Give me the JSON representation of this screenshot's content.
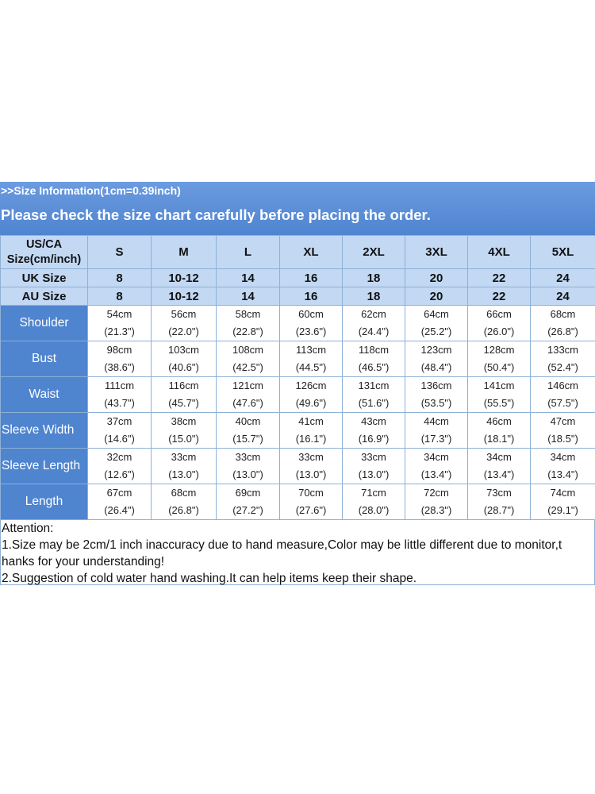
{
  "banner": {
    "info": ">>Size Information(1cm=0.39inch)",
    "warning": "Please check the size chart carefully before placing the order."
  },
  "sizes": [
    "S",
    "M",
    "L",
    "XL",
    "2XL",
    "3XL",
    "4XL",
    "5XL"
  ],
  "header_rows": [
    {
      "label_line1": "US/CA",
      "label_line2": "Size(cm/inch)"
    },
    {
      "label": "UK Size",
      "values": [
        "8",
        "10-12",
        "14",
        "16",
        "18",
        "20",
        "22",
        "24"
      ]
    },
    {
      "label": "AU Size",
      "values": [
        "8",
        "10-12",
        "14",
        "16",
        "18",
        "20",
        "22",
        "24"
      ]
    }
  ],
  "measurements": [
    {
      "label": "Shoulder",
      "cm": [
        "54cm",
        "56cm",
        "58cm",
        "60cm",
        "62cm",
        "64cm",
        "66cm",
        "68cm"
      ],
      "inch": [
        "(21.3\")",
        "(22.0\")",
        "(22.8\")",
        "(23.6\")",
        "(24.4\")",
        "(25.2\")",
        "(26.0\")",
        "(26.8\")"
      ]
    },
    {
      "label": "Bust",
      "cm": [
        "98cm",
        "103cm",
        "108cm",
        "113cm",
        "118cm",
        "123cm",
        "128cm",
        "133cm"
      ],
      "inch": [
        "(38.6\")",
        "(40.6\")",
        "(42.5\")",
        "(44.5\")",
        "(46.5\")",
        "(48.4\")",
        "(50.4\")",
        "(52.4\")"
      ]
    },
    {
      "label": "Waist",
      "cm": [
        "111cm",
        "116cm",
        "121cm",
        "126cm",
        "131cm",
        "136cm",
        "141cm",
        "146cm"
      ],
      "inch": [
        "(43.7\")",
        "(45.7\")",
        "(47.6\")",
        "(49.6\")",
        "(51.6\")",
        "(53.5\")",
        "(55.5\")",
        "(57.5\")"
      ]
    },
    {
      "label": "Sleeve Width",
      "cm": [
        "37cm",
        "38cm",
        "40cm",
        "41cm",
        "43cm",
        "44cm",
        "46cm",
        "47cm"
      ],
      "inch": [
        "(14.6\")",
        "(15.0\")",
        "(15.7\")",
        "(16.1\")",
        "(16.9\")",
        "(17.3\")",
        "(18.1\")",
        "(18.5\")"
      ]
    },
    {
      "label": "Sleeve Length",
      "cm": [
        "32cm",
        "33cm",
        "33cm",
        "33cm",
        "33cm",
        "34cm",
        "34cm",
        "34cm"
      ],
      "inch": [
        "(12.6\")",
        "(13.0\")",
        "(13.0\")",
        "(13.0\")",
        "(13.0\")",
        "(13.4\")",
        "(13.4\")",
        "(13.4\")"
      ]
    },
    {
      "label": "Length",
      "cm": [
        "67cm",
        "68cm",
        "69cm",
        "70cm",
        "71cm",
        "72cm",
        "73cm",
        "74cm"
      ],
      "inch": [
        "(26.4\")",
        "(26.8\")",
        "(27.2\")",
        "(27.6\")",
        "(28.0\")",
        "(28.3\")",
        "(28.7\")",
        "(29.1\")"
      ]
    }
  ],
  "notes": {
    "heading": "Attention:",
    "line1": "1.Size may be 2cm/1 inch inaccuracy due to hand measure,Color may be little different due to monitor,t hanks for your understanding!",
    "line2": "2.Suggestion of cold water hand washing.It can help items keep their shape."
  },
  "colors": {
    "banner": "#4f84cf",
    "header_cell": "#c2d8f3",
    "row_label": "#4f84cf",
    "grid": "#8eb1d6"
  }
}
